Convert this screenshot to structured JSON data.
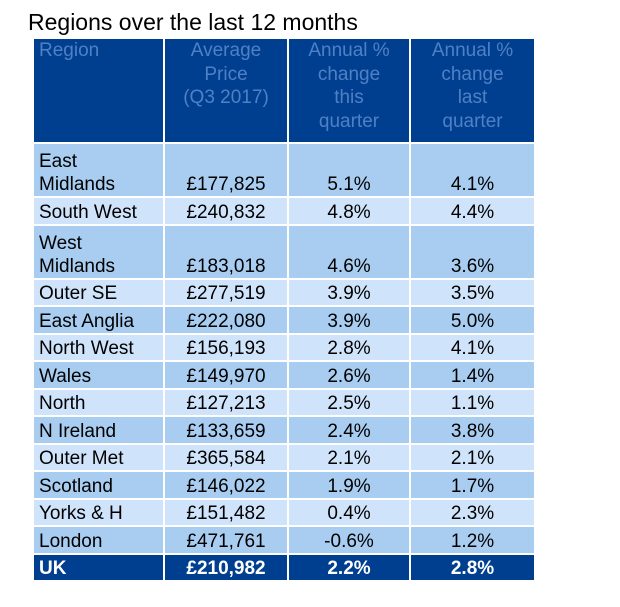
{
  "title": "Regions over the last 12 months",
  "colors": {
    "header_bg": "#003f8f",
    "header_text": "#4f80c6",
    "row_mid": "#a8cdf0",
    "row_light": "#cfe4fb",
    "total_bg": "#003f8f",
    "total_text": "#ffffff"
  },
  "chart_data": {
    "type": "table",
    "title": "Regions over the last 12 months",
    "columns": [
      [
        "Region"
      ],
      [
        "Average",
        "Price",
        "(Q3 2017)"
      ],
      [
        "Annual %",
        "change",
        "this",
        "quarter"
      ],
      [
        "Annual %",
        "change",
        "last",
        "quarter"
      ]
    ],
    "rows": [
      {
        "region": [
          "East",
          "Midlands"
        ],
        "price": "£177,825",
        "this_q": "5.1%",
        "last_q": "4.1%"
      },
      {
        "region": [
          "South West"
        ],
        "price": "£240,832",
        "this_q": "4.8%",
        "last_q": "4.4%"
      },
      {
        "region": [
          "West",
          "Midlands"
        ],
        "price": "£183,018",
        "this_q": "4.6%",
        "last_q": "3.6%"
      },
      {
        "region": [
          "Outer SE"
        ],
        "price": "£277,519",
        "this_q": "3.9%",
        "last_q": "3.5%"
      },
      {
        "region": [
          "East Anglia"
        ],
        "price": "£222,080",
        "this_q": "3.9%",
        "last_q": "5.0%"
      },
      {
        "region": [
          "North West"
        ],
        "price": "£156,193",
        "this_q": "2.8%",
        "last_q": "4.1%"
      },
      {
        "region": [
          "Wales"
        ],
        "price": "£149,970",
        "this_q": "2.6%",
        "last_q": "1.4%"
      },
      {
        "region": [
          "North"
        ],
        "price": "£127,213",
        "this_q": "2.5%",
        "last_q": "1.1%"
      },
      {
        "region": [
          "N Ireland"
        ],
        "price": "£133,659",
        "this_q": "2.4%",
        "last_q": "3.8%"
      },
      {
        "region": [
          "Outer Met"
        ],
        "price": "£365,584",
        "this_q": "2.1%",
        "last_q": "2.1%"
      },
      {
        "region": [
          "Scotland"
        ],
        "price": "£146,022",
        "this_q": "1.9%",
        "last_q": "1.7%"
      },
      {
        "region": [
          "Yorks & H"
        ],
        "price": "£151,482",
        "this_q": "0.4%",
        "last_q": "2.3%"
      },
      {
        "region": [
          "London"
        ],
        "price": "£471,761",
        "this_q": "-0.6%",
        "last_q": "1.2%"
      }
    ],
    "total": {
      "region": [
        "UK"
      ],
      "price": "£210,982",
      "this_q": "2.2%",
      "last_q": "2.8%"
    }
  }
}
